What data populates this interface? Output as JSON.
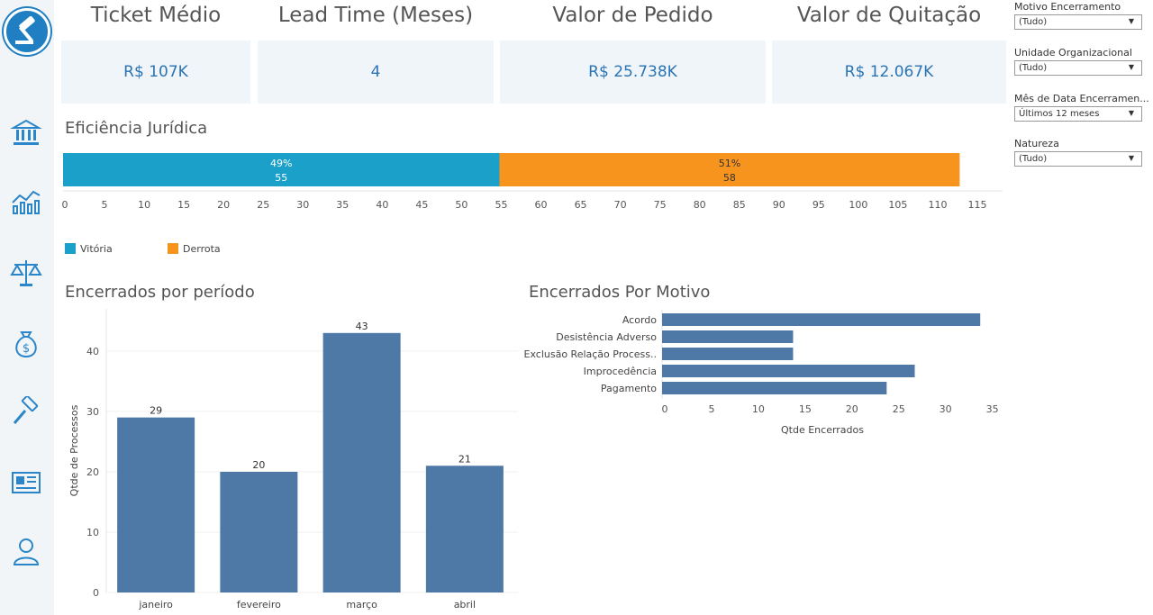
{
  "kpis": [
    {
      "title": "Ticket Médio",
      "value": "R$ 107K"
    },
    {
      "title": "Lead Time (Meses)",
      "value": "4"
    },
    {
      "title": "Valor de Pedido",
      "value": "R$ 25.738K"
    },
    {
      "title": "Valor de Quitação",
      "value": "R$ 12.067K"
    }
  ],
  "filters": [
    {
      "label": "Motivo Encerramento",
      "value": "(Tudo)"
    },
    {
      "label": "Unidade Organizacional",
      "value": "(Tudo)"
    },
    {
      "label": "Mês de Data Encerramen...",
      "value": "Últimos 12 meses"
    },
    {
      "label": "Natureza",
      "value": "(Tudo)"
    }
  ],
  "icons": [
    "gavel-logo-icon",
    "bank-icon",
    "chart-icon",
    "scales-icon",
    "money-bag-icon",
    "gavel-icon",
    "newspaper-icon",
    "user-icon"
  ],
  "colors": {
    "vitoria": "#1aa0c9",
    "derrota": "#f7941d",
    "bar": "#4e79a7",
    "kpi_value": "#2a74b3"
  },
  "chart_data": [
    {
      "type": "bar",
      "orientation": "horizontal-stacked",
      "title": "Eficiência Jurídica",
      "series": [
        {
          "name": "Vitória",
          "values": [
            55
          ],
          "percent": "49%"
        },
        {
          "name": "Derrota",
          "values": [
            58
          ],
          "percent": "51%"
        }
      ],
      "xlim": [
        0,
        115
      ],
      "ticks": [
        0,
        5,
        10,
        15,
        20,
        25,
        30,
        35,
        40,
        45,
        50,
        55,
        60,
        65,
        70,
        75,
        80,
        85,
        90,
        95,
        100,
        105,
        110,
        115
      ],
      "legend": "bottom-left"
    },
    {
      "type": "bar",
      "title": "Encerrados por período",
      "categories": [
        "janeiro",
        "fevereiro",
        "março",
        "abril"
      ],
      "values": [
        29,
        20,
        43,
        21
      ],
      "ylabel": "Qtde de Processos",
      "ylim": [
        0,
        47
      ],
      "yticks": [
        0,
        10,
        20,
        30,
        40
      ],
      "grid": true
    },
    {
      "type": "bar",
      "orientation": "horizontal",
      "title": "Encerrados Por Motivo",
      "categories": [
        "Acordo",
        "Desistência Adverso",
        "Exclusão Relação Process..",
        "Improcedência",
        "Pagamento"
      ],
      "values": [
        34,
        14,
        14,
        27,
        24
      ],
      "xlabel": "Qtde Encerrados",
      "xlim": [
        0,
        36
      ],
      "xticks": [
        0,
        5,
        10,
        15,
        20,
        25,
        30,
        35
      ]
    }
  ]
}
